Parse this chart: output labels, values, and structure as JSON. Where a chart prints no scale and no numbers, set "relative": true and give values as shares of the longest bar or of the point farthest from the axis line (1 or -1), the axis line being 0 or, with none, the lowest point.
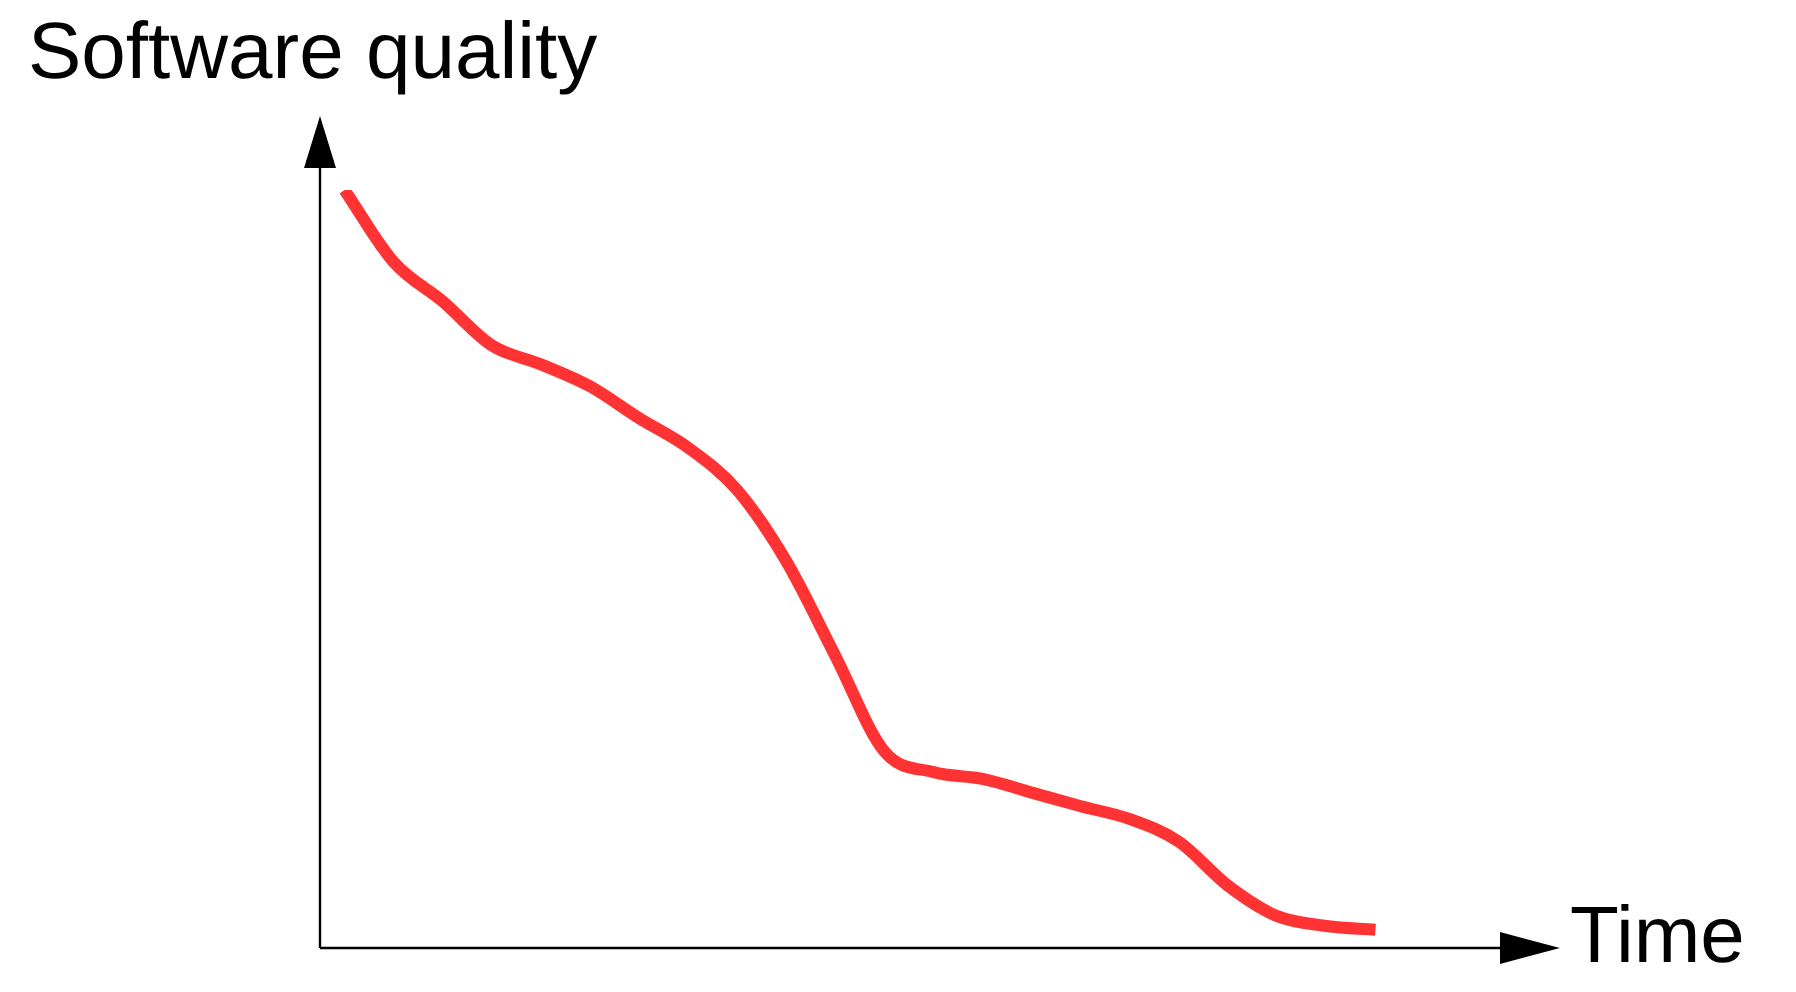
{
  "chart_data": {
    "type": "line",
    "title": "Software quality",
    "xlabel": "Time",
    "relative": true,
    "tick_labels": false,
    "marker": "none",
    "categories": [
      null,
      null,
      null,
      null,
      null,
      null,
      null,
      null,
      null,
      null,
      null,
      null,
      null,
      null,
      null,
      null,
      null,
      null,
      null,
      null,
      null,
      null
    ],
    "series": [
      {
        "color": "#ff3333",
        "values": [
          1,
          0.905,
          0.853,
          0.795,
          0.77,
          0.741,
          0.699,
          0.66,
          0.604,
          0.51,
          0.385,
          0.259,
          0.232,
          0.223,
          0.205,
          0.187,
          0.17,
          0.14,
          0.082,
          0.042,
          0.029,
          0.024
        ]
      }
    ]
  }
}
